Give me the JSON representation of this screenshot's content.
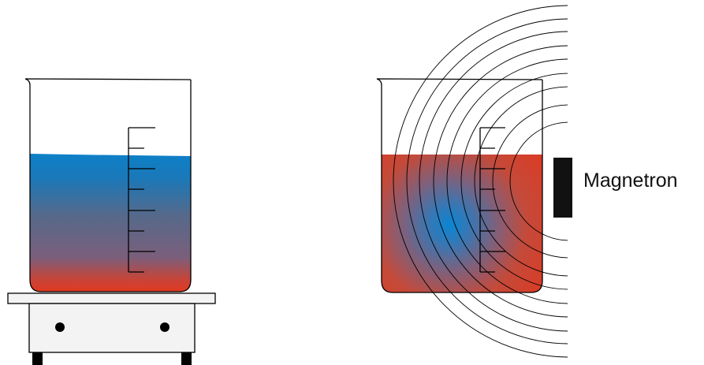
{
  "labels": {
    "magnetron": "Magnetron"
  },
  "colors": {
    "hot": "#e03a22",
    "cool": "#0e7ec4",
    "mid": "#5a6a86",
    "outline": "#000000",
    "stand_fill": "#f2f2f2",
    "stand_feet": "#000000",
    "magnetron_fill": "#111111"
  }
}
